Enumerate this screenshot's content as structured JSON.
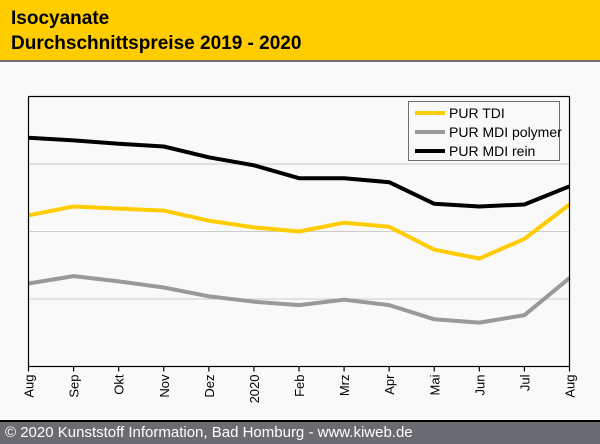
{
  "header": {
    "title_line1": "Isocyanate",
    "title_line2": "Durchschnittspreise 2019 - 2020"
  },
  "footer": {
    "text": "© 2020 Kunststoff Information, Bad Homburg - www.kiweb.de"
  },
  "colors": {
    "header_bg": "#ffcc00",
    "footer_bg": "#6b6c71",
    "tdi": "#ffcc00",
    "mdi_polymer": "#999999",
    "mdi_rein": "#000000",
    "grid": "#cccccc"
  },
  "chart_data": {
    "type": "line",
    "title": "Isocyanate Durchschnittspreise 2019 - 2020",
    "xlabel": "",
    "ylabel": "",
    "y_axis_labels_shown": false,
    "y_units": "relative index (no scale shown; gridlines at 1, 2, 3)",
    "ylim": [
      0,
      4
    ],
    "yticks": [
      1,
      2,
      3
    ],
    "grid": true,
    "legend_position": "top-right",
    "categories": [
      "Aug",
      "Sep",
      "Okt",
      "Nov",
      "Dez",
      "2020",
      "Feb",
      "Mrz",
      "Apr",
      "Mai",
      "Jun",
      "Jul",
      "Aug"
    ],
    "series": [
      {
        "name": "PUR TDI",
        "color": "#ffcc00",
        "values": [
          2.24,
          2.37,
          2.34,
          2.31,
          2.16,
          2.06,
          2.0,
          2.13,
          2.07,
          1.73,
          1.6,
          1.89,
          2.4
        ]
      },
      {
        "name": "PUR MDI polymer",
        "color": "#999999",
        "values": [
          1.23,
          1.34,
          1.26,
          1.17,
          1.04,
          0.96,
          0.91,
          0.99,
          0.91,
          0.7,
          0.65,
          0.76,
          1.31
        ]
      },
      {
        "name": "PUR MDI rein",
        "color": "#000000",
        "values": [
          3.39,
          3.35,
          3.3,
          3.26,
          3.1,
          2.98,
          2.79,
          2.79,
          2.73,
          2.41,
          2.37,
          2.4,
          2.67
        ]
      }
    ]
  }
}
